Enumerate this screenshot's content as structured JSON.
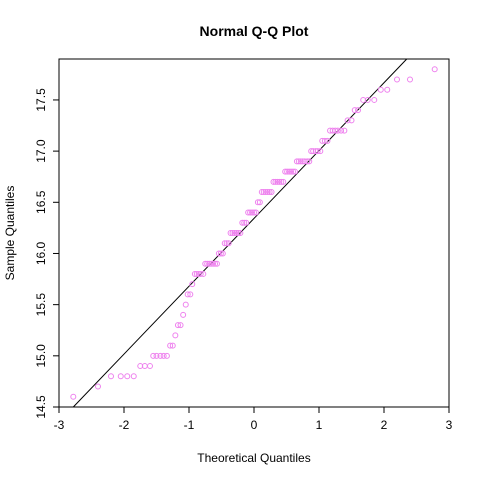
{
  "chart_data": {
    "type": "scatter",
    "title": "Normal Q-Q Plot",
    "xlabel": "Theoretical Quantiles",
    "ylabel": "Sample Quantiles",
    "xlim": [
      -3,
      3
    ],
    "ylim": [
      14.5,
      17.9
    ],
    "x_ticks": [
      "-3",
      "-2",
      "-1",
      "0",
      "1",
      "2",
      "3"
    ],
    "y_ticks": [
      "14.5",
      "15.0",
      "15.5",
      "16.0",
      "16.5",
      "17.0",
      "17.5"
    ],
    "point_color": "#ee82ee",
    "line_color": "#000000",
    "points": [
      {
        "x": -2.78,
        "y": 14.6
      },
      {
        "x": -2.4,
        "y": 14.7
      },
      {
        "x": -2.2,
        "y": 14.8
      },
      {
        "x": -2.05,
        "y": 14.8
      },
      {
        "x": -1.95,
        "y": 14.8
      },
      {
        "x": -1.85,
        "y": 14.8
      },
      {
        "x": -1.75,
        "y": 14.9
      },
      {
        "x": -1.68,
        "y": 14.9
      },
      {
        "x": -1.6,
        "y": 14.9
      },
      {
        "x": -1.55,
        "y": 15.0
      },
      {
        "x": -1.5,
        "y": 15.0
      },
      {
        "x": -1.44,
        "y": 15.0
      },
      {
        "x": -1.39,
        "y": 15.0
      },
      {
        "x": -1.34,
        "y": 15.0
      },
      {
        "x": -1.29,
        "y": 15.1
      },
      {
        "x": -1.25,
        "y": 15.1
      },
      {
        "x": -1.21,
        "y": 15.2
      },
      {
        "x": -1.17,
        "y": 15.3
      },
      {
        "x": -1.13,
        "y": 15.3
      },
      {
        "x": -1.09,
        "y": 15.4
      },
      {
        "x": -1.05,
        "y": 15.5
      },
      {
        "x": -1.02,
        "y": 15.6
      },
      {
        "x": -0.98,
        "y": 15.6
      },
      {
        "x": -0.95,
        "y": 15.7
      },
      {
        "x": -0.91,
        "y": 15.8
      },
      {
        "x": -0.88,
        "y": 15.8
      },
      {
        "x": -0.85,
        "y": 15.8
      },
      {
        "x": -0.82,
        "y": 15.8
      },
      {
        "x": -0.78,
        "y": 15.8
      },
      {
        "x": -0.75,
        "y": 15.9
      },
      {
        "x": -0.72,
        "y": 15.9
      },
      {
        "x": -0.69,
        "y": 15.9
      },
      {
        "x": -0.66,
        "y": 15.9
      },
      {
        "x": -0.63,
        "y": 15.9
      },
      {
        "x": -0.6,
        "y": 15.9
      },
      {
        "x": -0.57,
        "y": 15.9
      },
      {
        "x": -0.54,
        "y": 16.0
      },
      {
        "x": -0.51,
        "y": 16.0
      },
      {
        "x": -0.48,
        "y": 16.0
      },
      {
        "x": -0.45,
        "y": 16.1
      },
      {
        "x": -0.42,
        "y": 16.1
      },
      {
        "x": -0.39,
        "y": 16.1
      },
      {
        "x": -0.36,
        "y": 16.2
      },
      {
        "x": -0.33,
        "y": 16.2
      },
      {
        "x": -0.3,
        "y": 16.2
      },
      {
        "x": -0.27,
        "y": 16.2
      },
      {
        "x": -0.24,
        "y": 16.2
      },
      {
        "x": -0.21,
        "y": 16.2
      },
      {
        "x": -0.18,
        "y": 16.3
      },
      {
        "x": -0.15,
        "y": 16.3
      },
      {
        "x": -0.12,
        "y": 16.3
      },
      {
        "x": -0.09,
        "y": 16.4
      },
      {
        "x": -0.06,
        "y": 16.4
      },
      {
        "x": -0.03,
        "y": 16.4
      },
      {
        "x": 0.0,
        "y": 16.4
      },
      {
        "x": 0.03,
        "y": 16.4
      },
      {
        "x": 0.06,
        "y": 16.5
      },
      {
        "x": 0.09,
        "y": 16.5
      },
      {
        "x": 0.12,
        "y": 16.6
      },
      {
        "x": 0.15,
        "y": 16.6
      },
      {
        "x": 0.18,
        "y": 16.6
      },
      {
        "x": 0.21,
        "y": 16.6
      },
      {
        "x": 0.24,
        "y": 16.6
      },
      {
        "x": 0.27,
        "y": 16.6
      },
      {
        "x": 0.3,
        "y": 16.7
      },
      {
        "x": 0.33,
        "y": 16.7
      },
      {
        "x": 0.36,
        "y": 16.7
      },
      {
        "x": 0.39,
        "y": 16.7
      },
      {
        "x": 0.42,
        "y": 16.7
      },
      {
        "x": 0.45,
        "y": 16.7
      },
      {
        "x": 0.48,
        "y": 16.8
      },
      {
        "x": 0.51,
        "y": 16.8
      },
      {
        "x": 0.54,
        "y": 16.8
      },
      {
        "x": 0.57,
        "y": 16.8
      },
      {
        "x": 0.6,
        "y": 16.8
      },
      {
        "x": 0.63,
        "y": 16.8
      },
      {
        "x": 0.66,
        "y": 16.9
      },
      {
        "x": 0.69,
        "y": 16.9
      },
      {
        "x": 0.72,
        "y": 16.9
      },
      {
        "x": 0.75,
        "y": 16.9
      },
      {
        "x": 0.78,
        "y": 16.9
      },
      {
        "x": 0.82,
        "y": 16.9
      },
      {
        "x": 0.85,
        "y": 16.9
      },
      {
        "x": 0.88,
        "y": 17.0
      },
      {
        "x": 0.91,
        "y": 17.0
      },
      {
        "x": 0.95,
        "y": 17.0
      },
      {
        "x": 0.98,
        "y": 17.0
      },
      {
        "x": 1.02,
        "y": 17.0
      },
      {
        "x": 1.05,
        "y": 17.1
      },
      {
        "x": 1.09,
        "y": 17.1
      },
      {
        "x": 1.13,
        "y": 17.1
      },
      {
        "x": 1.17,
        "y": 17.2
      },
      {
        "x": 1.21,
        "y": 17.2
      },
      {
        "x": 1.25,
        "y": 17.2
      },
      {
        "x": 1.29,
        "y": 17.2
      },
      {
        "x": 1.34,
        "y": 17.2
      },
      {
        "x": 1.39,
        "y": 17.2
      },
      {
        "x": 1.44,
        "y": 17.3
      },
      {
        "x": 1.5,
        "y": 17.3
      },
      {
        "x": 1.55,
        "y": 17.4
      },
      {
        "x": 1.6,
        "y": 17.4
      },
      {
        "x": 1.68,
        "y": 17.5
      },
      {
        "x": 1.75,
        "y": 17.5
      },
      {
        "x": 1.85,
        "y": 17.5
      },
      {
        "x": 1.95,
        "y": 17.6
      },
      {
        "x": 2.05,
        "y": 17.6
      },
      {
        "x": 2.2,
        "y": 17.7
      },
      {
        "x": 2.4,
        "y": 17.7
      },
      {
        "x": 2.78,
        "y": 17.8
      }
    ],
    "reference_line": {
      "x1": -2.78,
      "y1": 14.5,
      "x2": 2.35,
      "y2": 17.9
    }
  }
}
